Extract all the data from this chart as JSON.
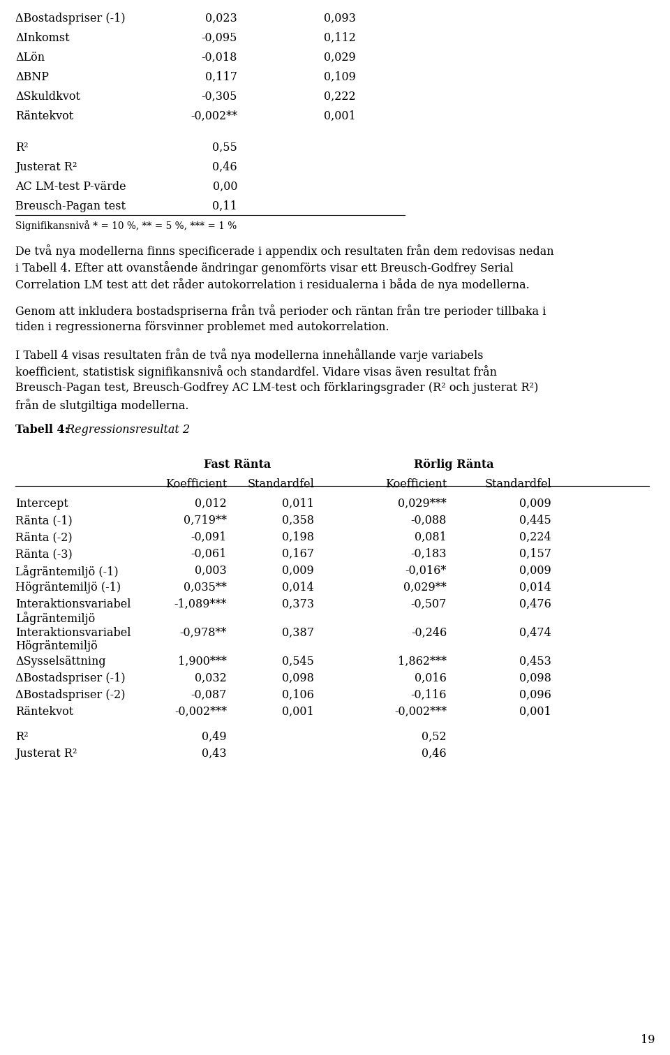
{
  "background_color": "#ffffff",
  "page_number": "19",
  "top_section": {
    "rows": [
      {
        "label": "ΔBostadspriser (-1)",
        "col1": "0,023",
        "col2": "0,093"
      },
      {
        "label": "ΔInkomst",
        "col1": "-0,095",
        "col2": "0,112"
      },
      {
        "label": "ΔLön",
        "col1": "-0,018",
        "col2": "0,029"
      },
      {
        "label": "ΔBNP",
        "col1": "0,117",
        "col2": "0,109"
      },
      {
        "label": "ΔSkuldkvot",
        "col1": "-0,305",
        "col2": "0,222"
      },
      {
        "label": "Räntekvot",
        "col1": "-0,002**",
        "col2": "0,001"
      }
    ],
    "stats": [
      {
        "label": "R²",
        "col1": "0,55",
        "col2": ""
      },
      {
        "label": "Justerat R²",
        "col1": "0,46",
        "col2": ""
      },
      {
        "label": "AC LM-test P-värde",
        "col1": "0,00",
        "col2": ""
      },
      {
        "label": "Breusch-Pagan test",
        "col1": "0,11",
        "col2": ""
      }
    ],
    "footnote": "Signifikansnivå * = 10 %, ** = 5 %, *** = 1 %"
  },
  "table4_title_bold": "Tabell 4:",
  "table4_title_italic": " Regressionsresultat 2",
  "table4": {
    "rows": [
      {
        "label": "Intercept",
        "fr_k": "0,012",
        "fr_s": "0,011",
        "rr_k": "0,029***",
        "rr_s": "0,009",
        "multiline": false
      },
      {
        "label": "Ränta (-1)",
        "fr_k": "0,719**",
        "fr_s": "0,358",
        "rr_k": "-0,088",
        "rr_s": "0,445",
        "multiline": false
      },
      {
        "label": "Ränta (-2)",
        "fr_k": "-0,091",
        "fr_s": "0,198",
        "rr_k": "0,081",
        "rr_s": "0,224",
        "multiline": false
      },
      {
        "label": "Ränta (-3)",
        "fr_k": "-0,061",
        "fr_s": "0,167",
        "rr_k": "-0,183",
        "rr_s": "0,157",
        "multiline": false
      },
      {
        "label": "Lågräntemiljö (-1)",
        "fr_k": "0,003",
        "fr_s": "0,009",
        "rr_k": "-0,016*",
        "rr_s": "0,009",
        "multiline": false
      },
      {
        "label": "Högräntemiljö (-1)",
        "fr_k": "0,035**",
        "fr_s": "0,014",
        "rr_k": "0,029**",
        "rr_s": "0,014",
        "multiline": false
      },
      {
        "label": "Interaktionsvariabel",
        "label2": "Lågräntemiljö",
        "fr_k": "-1,089***",
        "fr_s": "0,373",
        "rr_k": "-0,507",
        "rr_s": "0,476",
        "multiline": true
      },
      {
        "label": "Interaktionsvariabel",
        "label2": "Högräntemiljö",
        "fr_k": "-0,978**",
        "fr_s": "0,387",
        "rr_k": "-0,246",
        "rr_s": "0,474",
        "multiline": true
      },
      {
        "label": "ΔSysselsättning",
        "fr_k": "1,900***",
        "fr_s": "0,545",
        "rr_k": "1,862***",
        "rr_s": "0,453",
        "multiline": false
      },
      {
        "label": "ΔBostadspriser (-1)",
        "fr_k": "0,032",
        "fr_s": "0,098",
        "rr_k": "0,016",
        "rr_s": "0,098",
        "multiline": false
      },
      {
        "label": "ΔBostadspriser (-2)",
        "fr_k": "-0,087",
        "fr_s": "0,106",
        "rr_k": "-0,116",
        "rr_s": "0,096",
        "multiline": false
      },
      {
        "label": "Räntekvot",
        "fr_k": "-0,002***",
        "fr_s": "0,001",
        "rr_k": "-0,002***",
        "rr_s": "0,001",
        "multiline": false
      }
    ],
    "stats": [
      {
        "label": "R²",
        "fr_k": "0,49",
        "rr_k": "0,52"
      },
      {
        "label": "Justerat R²",
        "fr_k": "0,43",
        "rr_k": "0,46"
      }
    ]
  },
  "paragraphs": [
    "De två nya modellerna finns specificerade i appendix och resultaten från dem redovisas nedan",
    "i Tabell 4. Efter att ovanstående ändringar genomförts visar ett Breusch-Godfrey Serial",
    "Correlation LM test att det råder autokorrelation i residualerna i båda de nya modellerna.",
    "",
    "Genom att inkludera bostadspriserna från två perioder och räntan från tre perioder tillbaka i",
    "tiden i regressionerna försvinner problemet med autokorrelation.",
    "",
    "I Tabell 4 visas resultaten från de två nya modellerna innehållande varje variabels",
    "koefficient, statistisk signifikansnivå och standardfel. Vidare visas även resultat från",
    "Breusch-Pagan test, Breusch-Godfrey AC LM-test och förklaringsgrader (R² och justerat R²)",
    "från de slutgiltiga modellerna."
  ],
  "font_size": 11.5,
  "font_size_small": 9.8,
  "font_family": "DejaVu Serif"
}
